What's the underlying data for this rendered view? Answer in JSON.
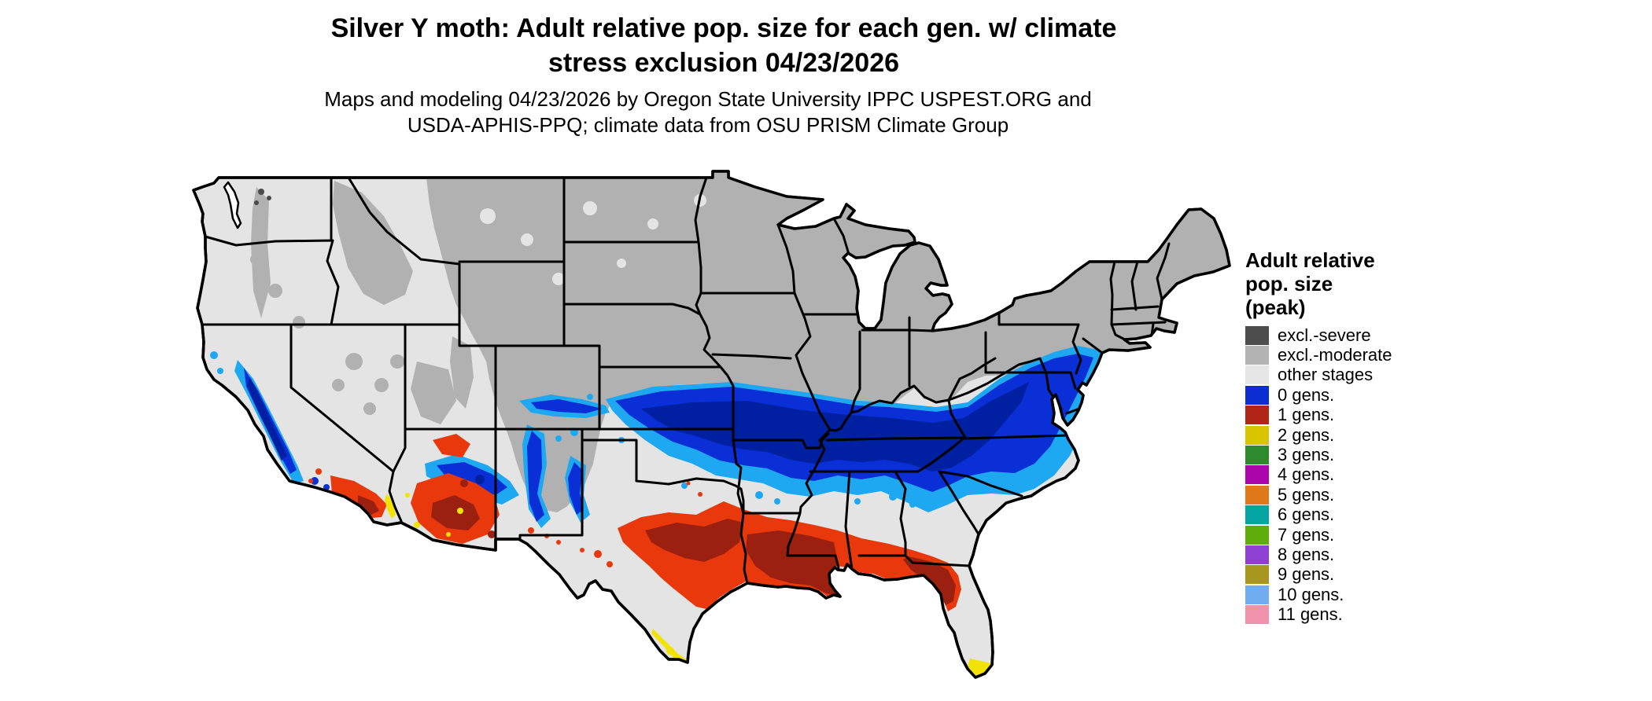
{
  "title_lines": [
    "Silver Y moth: Adult relative pop. size for each gen. w/ climate",
    "stress exclusion 04/23/2026"
  ],
  "subtitle_lines": [
    "Maps and modeling 04/23/2026 by Oregon State University IPPC USPEST.ORG and",
    "USDA-APHIS-PPQ; climate data from OSU PRISM Climate Group"
  ],
  "legend": {
    "title_lines": [
      "Adult relative",
      "pop. size",
      "(peak)"
    ],
    "items": [
      {
        "label": "excl.-severe",
        "color": "#4d4d4d"
      },
      {
        "label": "excl.-moderate",
        "color": "#b3b3b3"
      },
      {
        "label": "other stages",
        "color": "#e6e6e6"
      },
      {
        "label": "0 gens.",
        "color": "#0b2ed2"
      },
      {
        "label": "1 gens.",
        "color": "#b02515"
      },
      {
        "label": "2 gens.",
        "color": "#d9c400"
      },
      {
        "label": "3 gens.",
        "color": "#2d8a2d"
      },
      {
        "label": "4 gens.",
        "color": "#ab05ab"
      },
      {
        "label": "5 gens.",
        "color": "#e0791a"
      },
      {
        "label": "6 gens.",
        "color": "#05a5a5"
      },
      {
        "label": "7 gens.",
        "color": "#5ead0b"
      },
      {
        "label": "8 gens.",
        "color": "#8d40d2"
      },
      {
        "label": "9 gens.",
        "color": "#a8961f"
      },
      {
        "label": "10 gens.",
        "color": "#70adf0"
      },
      {
        "label": "11 gens.",
        "color": "#f192ad"
      }
    ]
  },
  "palette": {
    "border": "#000000",
    "water": "#ffffff",
    "land_other": "#e4e4e5",
    "excl_moderate": "#b1b1b1",
    "excl_severe": "#4a4a4a",
    "gen0_blue": "#0a2fd6",
    "gen0_blue_dark": "#0020a2",
    "gen0_cyan": "#1fa8f2",
    "gen1_red": "#e8380c",
    "gen1_red_dark": "#9c2010",
    "gen2_yellow": "#f2e205"
  }
}
